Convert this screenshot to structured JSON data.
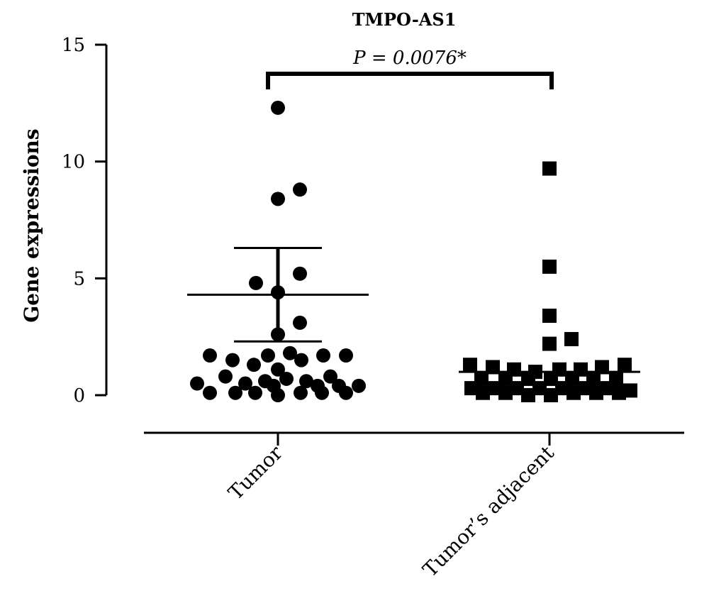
{
  "chart_data": {
    "type": "scatter",
    "title": "TMPO-AS1",
    "xlabel": "",
    "ylabel": "Gene expressions",
    "ylim": [
      0,
      15
    ],
    "yticks": [
      "0",
      "5",
      "10",
      "15"
    ],
    "categories": [
      "Tumor",
      "Tumor’s adjacent"
    ],
    "grid": false,
    "annotation": "P = 0.0076*",
    "series": [
      {
        "marker": "circle",
        "mean": 4.3,
        "sd_upper": 6.3,
        "sd_lower": 2.3,
        "points": [
          {
            "offset": 0.0,
            "y": 12.3
          },
          {
            "offset": 0.0,
            "y": 8.4
          },
          {
            "offset": 0.31,
            "y": 8.8
          },
          {
            "offset": 0.31,
            "y": 5.2
          },
          {
            "offset": -0.31,
            "y": 4.8
          },
          {
            "offset": 0.0,
            "y": 4.4
          },
          {
            "offset": 0.31,
            "y": 3.1
          },
          {
            "offset": 0.0,
            "y": 2.6
          },
          {
            "offset": -0.96,
            "y": 1.7
          },
          {
            "offset": -0.64,
            "y": 1.5
          },
          {
            "offset": -0.14,
            "y": 1.7
          },
          {
            "offset": 0.17,
            "y": 1.8
          },
          {
            "offset": 0.33,
            "y": 1.5
          },
          {
            "offset": 0.64,
            "y": 1.7
          },
          {
            "offset": 0.96,
            "y": 1.7
          },
          {
            "offset": -0.34,
            "y": 1.3
          },
          {
            "offset": 0.0,
            "y": 1.1
          },
          {
            "offset": -0.74,
            "y": 0.8
          },
          {
            "offset": 0.74,
            "y": 0.8
          },
          {
            "offset": -0.18,
            "y": 0.6
          },
          {
            "offset": 0.12,
            "y": 0.7
          },
          {
            "offset": 0.4,
            "y": 0.6
          },
          {
            "offset": -1.14,
            "y": 0.5
          },
          {
            "offset": -0.46,
            "y": 0.5
          },
          {
            "offset": 0.56,
            "y": 0.4
          },
          {
            "offset": 0.86,
            "y": 0.4
          },
          {
            "offset": 1.14,
            "y": 0.4
          },
          {
            "offset": -0.06,
            "y": 0.4
          },
          {
            "offset": -0.96,
            "y": 0.1
          },
          {
            "offset": -0.6,
            "y": 0.1
          },
          {
            "offset": -0.32,
            "y": 0.1
          },
          {
            "offset": 0.0,
            "y": 0.0
          },
          {
            "offset": 0.32,
            "y": 0.1
          },
          {
            "offset": 0.62,
            "y": 0.1
          },
          {
            "offset": 0.96,
            "y": 0.1
          }
        ]
      },
      {
        "marker": "square",
        "mean": 1.0,
        "points": [
          {
            "offset": 0.0,
            "y": 9.7
          },
          {
            "offset": 0.0,
            "y": 5.5
          },
          {
            "offset": 0.0,
            "y": 3.4
          },
          {
            "offset": 0.31,
            "y": 2.4
          },
          {
            "offset": 0.0,
            "y": 2.2
          },
          {
            "offset": -1.12,
            "y": 1.3
          },
          {
            "offset": -0.8,
            "y": 1.2
          },
          {
            "offset": -0.5,
            "y": 1.1
          },
          {
            "offset": -0.2,
            "y": 1.0
          },
          {
            "offset": 0.14,
            "y": 1.1
          },
          {
            "offset": 0.44,
            "y": 1.1
          },
          {
            "offset": 0.74,
            "y": 1.2
          },
          {
            "offset": 1.06,
            "y": 1.3
          },
          {
            "offset": -0.96,
            "y": 0.7
          },
          {
            "offset": -0.62,
            "y": 0.7
          },
          {
            "offset": -0.3,
            "y": 0.7
          },
          {
            "offset": 0.02,
            "y": 0.7
          },
          {
            "offset": 0.32,
            "y": 0.7
          },
          {
            "offset": 0.62,
            "y": 0.7
          },
          {
            "offset": 0.94,
            "y": 0.7
          },
          {
            "offset": -1.1,
            "y": 0.3
          },
          {
            "offset": -0.78,
            "y": 0.3
          },
          {
            "offset": -0.46,
            "y": 0.3
          },
          {
            "offset": -0.14,
            "y": 0.3
          },
          {
            "offset": 0.18,
            "y": 0.3
          },
          {
            "offset": 0.5,
            "y": 0.3
          },
          {
            "offset": 0.82,
            "y": 0.3
          },
          {
            "offset": 1.14,
            "y": 0.2
          },
          {
            "offset": -0.94,
            "y": 0.1
          },
          {
            "offset": -0.62,
            "y": 0.1
          },
          {
            "offset": -0.3,
            "y": 0.0
          },
          {
            "offset": 0.02,
            "y": 0.0
          },
          {
            "offset": 0.34,
            "y": 0.1
          },
          {
            "offset": 0.66,
            "y": 0.1
          },
          {
            "offset": 0.98,
            "y": 0.1
          }
        ]
      }
    ]
  }
}
